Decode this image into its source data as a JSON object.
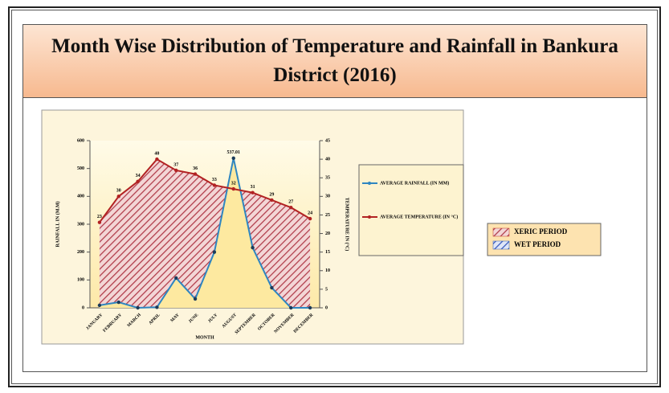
{
  "chart_data": {
    "type": "line",
    "title": "Month Wise Distribution of Temperature and Rainfall in Bankura District (2016)",
    "categories": [
      "JANUARY",
      "FEBRUARY",
      "MARCH",
      "APRIL",
      "MAY",
      "JUNE",
      "JULY",
      "AUGUST",
      "SEPTEMBER",
      "OCTOBER",
      "NOVEMBER",
      "DECEMBER"
    ],
    "x_label": "MONTH",
    "y_label": "RAINFALL IN (M.M)",
    "y2_label": "TEMPERATURE IN (°C)",
    "ylim": [
      0,
      600
    ],
    "yticks": [
      0,
      100,
      200,
      300,
      400,
      500,
      600
    ],
    "y2lim": [
      0,
      45
    ],
    "y2ticks": [
      0,
      5,
      10,
      15,
      20,
      25,
      30,
      35,
      40,
      45
    ],
    "series": [
      {
        "name": "AVERAGE RAINFALL (IN MM)",
        "color": "#2e86c1",
        "axis": "y",
        "values": [
          9,
          20,
          0,
          2,
          107,
          32,
          200,
          537.01,
          216,
          72,
          0,
          0
        ],
        "value_labels": [
          null,
          null,
          null,
          null,
          null,
          null,
          null,
          "537.01",
          null,
          null,
          null,
          null
        ]
      },
      {
        "name": "AVERAGE TEMPERATURE (IN °C)",
        "color": "#b22222",
        "axis": "y2",
        "values": [
          23,
          30,
          34,
          40,
          37,
          36,
          33,
          32,
          31,
          29,
          27,
          24
        ]
      }
    ],
    "period_legend": [
      {
        "name": "XERIC PERIOD",
        "color": "#c0392b"
      },
      {
        "name": "WET PERIOD",
        "color": "#2e5cb8"
      }
    ]
  }
}
